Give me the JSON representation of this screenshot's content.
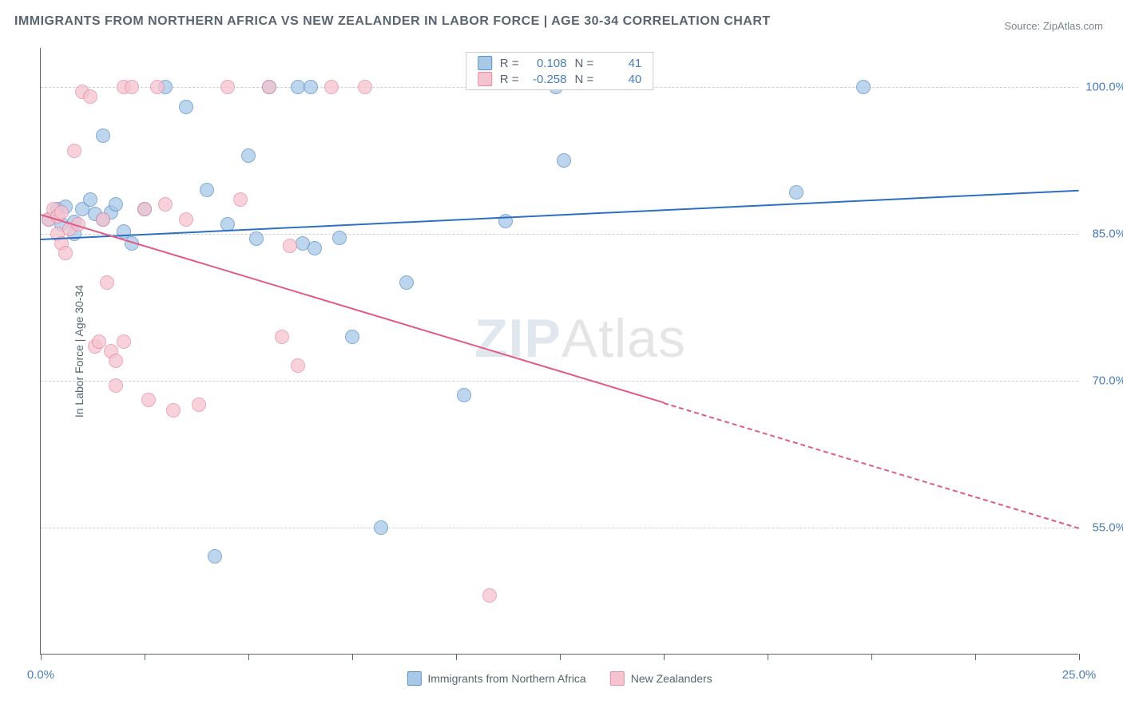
{
  "title": "IMMIGRANTS FROM NORTHERN AFRICA VS NEW ZEALANDER IN LABOR FORCE | AGE 30-34 CORRELATION CHART",
  "source": "Source: ZipAtlas.com",
  "watermark_a": "ZIP",
  "watermark_b": "Atlas",
  "yaxis_label": "In Labor Force | Age 30-34",
  "chart": {
    "type": "scatter",
    "xlim": [
      0,
      25
    ],
    "ylim": [
      42,
      104
    ],
    "x_ticks": [
      0,
      2.5,
      5,
      7.5,
      10,
      12.5,
      15,
      17.5,
      20,
      22.5,
      25
    ],
    "x_tick_labels": {
      "0": "0.0%",
      "25": "25.0%"
    },
    "y_gridlines": [
      55,
      70,
      85,
      100
    ],
    "y_tick_labels": {
      "55": "55.0%",
      "70": "70.0%",
      "85": "85.0%",
      "100": "100.0%"
    },
    "background_color": "#ffffff",
    "grid_color": "#d0d0d0",
    "axis_color": "#5a6570",
    "tick_label_color": "#4a7db8",
    "marker_radius": 9,
    "marker_opacity": 0.75
  },
  "series": [
    {
      "name": "Immigrants from Northern Africa",
      "color_fill": "#a8c8e8",
      "color_stroke": "#5a8fc8",
      "R": "0.108",
      "N": "41",
      "trend": {
        "x1": 0,
        "y1": 84.5,
        "x2": 25,
        "y2": 89.5,
        "solid_until_x": 25,
        "color": "#2e6fc4"
      },
      "points": [
        [
          0.2,
          86.5
        ],
        [
          0.4,
          87.5
        ],
        [
          0.5,
          86
        ],
        [
          0.6,
          87.8
        ],
        [
          0.8,
          86.2
        ],
        [
          0.8,
          85
        ],
        [
          1.0,
          87.5
        ],
        [
          1.2,
          88.5
        ],
        [
          1.3,
          87
        ],
        [
          1.5,
          95
        ],
        [
          1.5,
          86.5
        ],
        [
          1.7,
          87.2
        ],
        [
          1.8,
          88
        ],
        [
          2.0,
          85.2
        ],
        [
          2.2,
          84
        ],
        [
          2.5,
          87.5
        ],
        [
          3.0,
          100
        ],
        [
          3.5,
          98
        ],
        [
          4.0,
          89.5
        ],
        [
          4.2,
          52
        ],
        [
          4.5,
          86
        ],
        [
          5.0,
          93
        ],
        [
          5.2,
          84.5
        ],
        [
          5.5,
          100
        ],
        [
          6.2,
          100
        ],
        [
          6.3,
          84
        ],
        [
          6.5,
          100
        ],
        [
          6.6,
          83.5
        ],
        [
          7.2,
          84.6
        ],
        [
          7.5,
          74.5
        ],
        [
          8.2,
          55
        ],
        [
          8.8,
          80
        ],
        [
          10.2,
          68.5
        ],
        [
          11.2,
          86.3
        ],
        [
          12.4,
          100
        ],
        [
          12.6,
          92.5
        ],
        [
          18.2,
          89.2
        ],
        [
          19.8,
          100
        ]
      ]
    },
    {
      "name": "New Zealanders",
      "color_fill": "#f5c4d0",
      "color_stroke": "#e88ba5",
      "R": "-0.258",
      "N": "40",
      "trend": {
        "x1": 0,
        "y1": 87,
        "x2": 25,
        "y2": 55,
        "solid_until_x": 15,
        "color": "#e05a85"
      },
      "points": [
        [
          0.2,
          86.5
        ],
        [
          0.3,
          87.5
        ],
        [
          0.4,
          86.8
        ],
        [
          0.4,
          85
        ],
        [
          0.5,
          84
        ],
        [
          0.5,
          87.2
        ],
        [
          0.6,
          83
        ],
        [
          0.7,
          85.5
        ],
        [
          0.8,
          93.5
        ],
        [
          0.9,
          86
        ],
        [
          1.0,
          99.5
        ],
        [
          1.2,
          99
        ],
        [
          1.3,
          73.5
        ],
        [
          1.4,
          74
        ],
        [
          1.5,
          86.5
        ],
        [
          1.6,
          80
        ],
        [
          1.7,
          73
        ],
        [
          1.8,
          72
        ],
        [
          1.8,
          69.5
        ],
        [
          2.0,
          74
        ],
        [
          2.0,
          100
        ],
        [
          2.2,
          100
        ],
        [
          2.5,
          87.5
        ],
        [
          2.6,
          68
        ],
        [
          2.8,
          100
        ],
        [
          3.0,
          88
        ],
        [
          3.2,
          67
        ],
        [
          3.5,
          86.5
        ],
        [
          3.8,
          67.5
        ],
        [
          4.5,
          100
        ],
        [
          4.8,
          88.5
        ],
        [
          5.5,
          100
        ],
        [
          5.8,
          74.5
        ],
        [
          6.0,
          83.8
        ],
        [
          6.2,
          71.5
        ],
        [
          7.0,
          100
        ],
        [
          7.8,
          100
        ],
        [
          10.8,
          48
        ]
      ]
    }
  ],
  "legend_top": [
    {
      "swatch_fill": "#a8c8e8",
      "swatch_stroke": "#5a8fc8",
      "r_label": "R =",
      "r_val": "0.108",
      "n_label": "N =",
      "n_val": "41"
    },
    {
      "swatch_fill": "#f5c4d0",
      "swatch_stroke": "#e88ba5",
      "r_label": "R =",
      "r_val": "-0.258",
      "n_label": "N =",
      "n_val": "40"
    }
  ],
  "legend_bottom": [
    {
      "swatch_fill": "#a8c8e8",
      "swatch_stroke": "#5a8fc8",
      "label": "Immigrants from Northern Africa"
    },
    {
      "swatch_fill": "#f5c4d0",
      "swatch_stroke": "#e88ba5",
      "label": "New Zealanders"
    }
  ]
}
